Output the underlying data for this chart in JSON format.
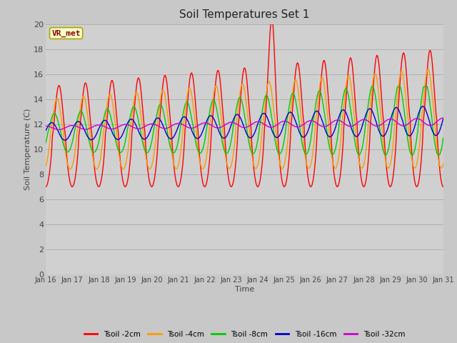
{
  "title": "Soil Temperatures Set 1",
  "xlabel": "Time",
  "ylabel": "Soil Temperature (C)",
  "ylim": [
    0,
    20
  ],
  "yticks": [
    0,
    2,
    4,
    6,
    8,
    10,
    12,
    14,
    16,
    18,
    20
  ],
  "xtick_labels": [
    "Jan 16",
    "Jan 17",
    "Jan 18",
    "Jan 19",
    "Jan 20",
    "Jan 21",
    "Jan 22",
    "Jan 23",
    "Jan 24",
    "Jan 25",
    "Jan 26",
    "Jan 27",
    "Jan 28",
    "Jan 29",
    "Jan 30",
    "Jan 31"
  ],
  "series_colors": {
    "Tsoil -2cm": "#ff0000",
    "Tsoil -4cm": "#ff9900",
    "Tsoil -8cm": "#00cc00",
    "Tsoil -16cm": "#0000cc",
    "Tsoil -32cm": "#cc00cc"
  },
  "legend_label": "VR_met",
  "fig_facecolor": "#c8c8c8",
  "ax_facecolor": "#d0d0d0"
}
